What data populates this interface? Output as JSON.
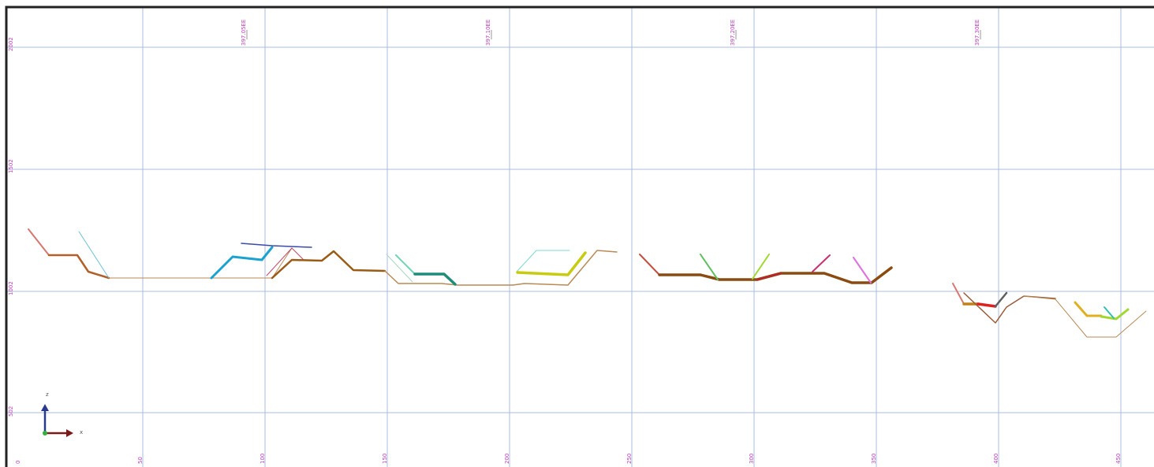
{
  "x_axis_labels": [
    "0",
    "50",
    "100",
    "150",
    "200",
    "250",
    "300",
    "350",
    "400",
    "450"
  ],
  "y_axis_labels": [
    "2002",
    "1502",
    "1002",
    "502"
  ],
  "station_labels": [
    "397.05EE",
    "397.10EE",
    "397.20EE",
    "397.30EE"
  ],
  "axis_icon": {
    "z": "z",
    "x": "x"
  }
}
